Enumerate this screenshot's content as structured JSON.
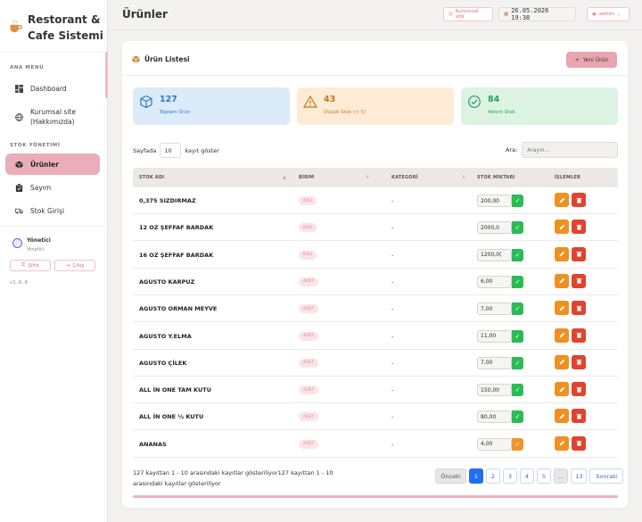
{
  "app": {
    "title_line1": "Restorant &",
    "title_line2": "Cafe Sistemi"
  },
  "sidebar": {
    "section_main": "ANA MENÜ",
    "section_stock": "STOK YÖNETİMİ",
    "items": [
      {
        "label": "Dashboard"
      },
      {
        "label_line1": "Kurumsal site",
        "label_line2": "(Hakkımızda)"
      },
      {
        "label": "Ürünler",
        "active": true
      },
      {
        "label": "Sayım"
      },
      {
        "label": "Stok Girişi"
      }
    ],
    "user": {
      "name": "Yönetici",
      "role": "Yönetici",
      "password_btn": "Şifre",
      "logout_btn": "Çıkış"
    },
    "version": "v1.0.0"
  },
  "topbar": {
    "title": "Ürünler",
    "site_btn": "Kurumsal site",
    "datetime": "26.05.2026 19:38",
    "user_btn": "admin"
  },
  "card": {
    "title": "Ürün Listesi",
    "new_button": "Yeni Ürün"
  },
  "stats": [
    {
      "value": "127",
      "label": "Toplam Ürün"
    },
    {
      "value": "43",
      "label": "Düşük Stok (< 5)"
    },
    {
      "value": "84",
      "label": "Yeterli Stok"
    }
  ],
  "table_controls": {
    "show_prefix": "Sayfada",
    "page_size": "10",
    "show_suffix": "kayıt göster",
    "search_label": "Ara:",
    "search_placeholder": "Arayın..."
  },
  "columns": [
    "STOK ADI",
    "BİRİM",
    "KATEGORİ",
    "STOK MİKTARI",
    "İŞLEMLER"
  ],
  "rows": [
    {
      "name": "0,375 SIZDIRMAZ",
      "unit": "KOLİ",
      "category": "-",
      "qty": "200,00",
      "low": false
    },
    {
      "name": "12 OZ ŞEFFAF BARDAK",
      "unit": "KOLİ",
      "category": "-",
      "qty": "2000,0",
      "low": false
    },
    {
      "name": "16 OZ ŞEFFAF BARDAK",
      "unit": "KOLİ",
      "category": "-",
      "qty": "1200,0(",
      "low": false
    },
    {
      "name": "AGUSTO KARPUZ",
      "unit": "ADET",
      "category": "-",
      "qty": "6,00",
      "low": false
    },
    {
      "name": "AGUSTO ORMAN MEYVE",
      "unit": "ADET",
      "category": "-",
      "qty": "7,00",
      "low": false
    },
    {
      "name": "AGUSTO Y.ELMA",
      "unit": "ADET",
      "category": "-",
      "qty": "11,00",
      "low": false
    },
    {
      "name": "AGUSTO ÇİLEK",
      "unit": "ADET",
      "category": "-",
      "qty": "7,00",
      "low": false
    },
    {
      "name": "ALL İN ONE TAM KUTU",
      "unit": "ADET",
      "category": "-",
      "qty": "150,00",
      "low": false
    },
    {
      "name": "ALL İN ONE ½ KUTU",
      "unit": "ADET",
      "category": "-",
      "qty": "80,00",
      "low": false
    },
    {
      "name": "ANANAS",
      "unit": "ADET",
      "category": "-",
      "qty": "4,00",
      "low": true
    }
  ],
  "footer": {
    "info_line1": "127 kayıttan 1 - 10 arasındaki kayıtlar gösteriliyor127 kayıttan 1 - 10",
    "info_line2": "arasındaki kayıtlar gösteriliyor",
    "pagination": [
      "Önceki",
      "1",
      "2",
      "3",
      "4",
      "5",
      "...",
      "13",
      "Sonraki"
    ]
  }
}
